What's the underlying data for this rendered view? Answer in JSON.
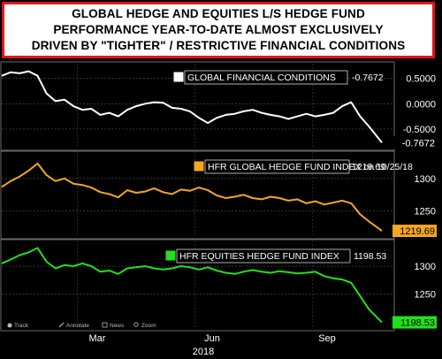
{
  "title_lines": [
    "GLOBAL HEDGE AND EQUITIES L/S HEDGE FUND",
    "PERFORMANCE YEAR-TO-DATE ALMOST EXCLUSIVELY",
    "DRIVEN BY \"TIGHTER\" / RESTRICTIVE FINANCIAL CONDITIONS"
  ],
  "toolbar": {
    "track": "Track",
    "annotate": "Annotate",
    "news": "News",
    "zoom": "Zoom"
  },
  "x_axis": {
    "ticks": [
      "Mar",
      "Jun",
      "Sep"
    ],
    "year": "2018"
  },
  "colors": {
    "background": "#000000",
    "fci": "#ffffff",
    "hfr_global": "#f5a623",
    "hfr_equities": "#22e11c",
    "title_border": "#e0141a"
  },
  "chart_data": [
    {
      "type": "line",
      "series_name": "GLOBAL FINANCIAL CONDITIONS",
      "last_value": "-0.7672",
      "y_ticks": [
        "0.5000",
        "0.0000",
        "-0.5000"
      ],
      "ylim": [
        -0.85,
        0.72
      ],
      "x": [
        "2018-01-01",
        "2018-01-08",
        "2018-01-15",
        "2018-01-22",
        "2018-01-29",
        "2018-02-05",
        "2018-02-12",
        "2018-02-19",
        "2018-02-26",
        "2018-03-05",
        "2018-03-12",
        "2018-03-19",
        "2018-03-26",
        "2018-04-02",
        "2018-04-09",
        "2018-04-16",
        "2018-04-23",
        "2018-04-30",
        "2018-05-07",
        "2018-05-14",
        "2018-05-21",
        "2018-05-28",
        "2018-06-04",
        "2018-06-11",
        "2018-06-18",
        "2018-06-25",
        "2018-07-02",
        "2018-07-09",
        "2018-07-16",
        "2018-07-23",
        "2018-07-30",
        "2018-08-06",
        "2018-08-13",
        "2018-08-20",
        "2018-08-27",
        "2018-09-03",
        "2018-09-10",
        "2018-09-17",
        "2018-09-24",
        "2018-10-01",
        "2018-10-08",
        "2018-10-15",
        "2018-10-25"
      ],
      "values": [
        0.55,
        0.62,
        0.6,
        0.64,
        0.55,
        0.2,
        0.05,
        0.08,
        -0.05,
        -0.12,
        -0.1,
        -0.22,
        -0.18,
        -0.25,
        -0.12,
        -0.05,
        0.0,
        0.03,
        0.02,
        -0.08,
        -0.1,
        -0.15,
        -0.28,
        -0.38,
        -0.28,
        -0.22,
        -0.2,
        -0.15,
        -0.12,
        -0.18,
        -0.22,
        -0.25,
        -0.3,
        -0.25,
        -0.2,
        -0.25,
        -0.22,
        -0.18,
        -0.05,
        0.03,
        -0.25,
        -0.45,
        -0.7672
      ]
    },
    {
      "type": "line",
      "series_name": "HFR GLOBAL HEDGE FUND INDEX on 10/25/18",
      "last_value": "1219.69",
      "y_ticks": [
        "1300",
        "1250"
      ],
      "ylim": [
        1213,
        1335
      ],
      "x": [
        "2018-01-01",
        "2018-01-08",
        "2018-01-15",
        "2018-01-22",
        "2018-01-29",
        "2018-02-05",
        "2018-02-12",
        "2018-02-19",
        "2018-02-26",
        "2018-03-05",
        "2018-03-12",
        "2018-03-19",
        "2018-03-26",
        "2018-04-02",
        "2018-04-09",
        "2018-04-16",
        "2018-04-23",
        "2018-04-30",
        "2018-05-07",
        "2018-05-14",
        "2018-05-21",
        "2018-05-28",
        "2018-06-04",
        "2018-06-11",
        "2018-06-18",
        "2018-06-25",
        "2018-07-02",
        "2018-07-09",
        "2018-07-16",
        "2018-07-23",
        "2018-07-30",
        "2018-08-06",
        "2018-08-13",
        "2018-08-20",
        "2018-08-27",
        "2018-09-03",
        "2018-09-10",
        "2018-09-17",
        "2018-09-24",
        "2018-10-01",
        "2018-10-08",
        "2018-10-15",
        "2018-10-25"
      ],
      "values": [
        1287,
        1296,
        1303,
        1312,
        1323,
        1305,
        1296,
        1300,
        1292,
        1290,
        1286,
        1279,
        1276,
        1271,
        1282,
        1278,
        1280,
        1285,
        1279,
        1276,
        1283,
        1281,
        1286,
        1282,
        1274,
        1270,
        1272,
        1275,
        1270,
        1268,
        1272,
        1270,
        1266,
        1268,
        1262,
        1265,
        1260,
        1263,
        1266,
        1262,
        1245,
        1234,
        1219.69
      ]
    },
    {
      "type": "line",
      "series_name": "HFR EQUITIES HEDGE FUND INDEX",
      "last_value": "1198.53",
      "y_ticks": [
        "1300",
        "1250"
      ],
      "ylim": [
        1193,
        1340
      ],
      "x": [
        "2018-01-01",
        "2018-01-08",
        "2018-01-15",
        "2018-01-22",
        "2018-01-29",
        "2018-02-05",
        "2018-02-12",
        "2018-02-19",
        "2018-02-26",
        "2018-03-05",
        "2018-03-12",
        "2018-03-19",
        "2018-03-26",
        "2018-04-02",
        "2018-04-09",
        "2018-04-16",
        "2018-04-23",
        "2018-04-30",
        "2018-05-07",
        "2018-05-14",
        "2018-05-21",
        "2018-05-28",
        "2018-06-04",
        "2018-06-11",
        "2018-06-18",
        "2018-06-25",
        "2018-07-02",
        "2018-07-09",
        "2018-07-16",
        "2018-07-23",
        "2018-07-30",
        "2018-08-06",
        "2018-08-13",
        "2018-08-20",
        "2018-08-27",
        "2018-09-03",
        "2018-09-10",
        "2018-09-17",
        "2018-09-24",
        "2018-10-01",
        "2018-10-08",
        "2018-10-15",
        "2018-10-25"
      ],
      "values": [
        1305,
        1312,
        1320,
        1325,
        1333,
        1308,
        1296,
        1302,
        1300,
        1305,
        1300,
        1290,
        1292,
        1286,
        1296,
        1298,
        1300,
        1296,
        1294,
        1296,
        1300,
        1298,
        1294,
        1298,
        1292,
        1288,
        1286,
        1290,
        1293,
        1290,
        1288,
        1291,
        1289,
        1287,
        1288,
        1290,
        1282,
        1278,
        1276,
        1270,
        1246,
        1222,
        1198.53
      ]
    }
  ]
}
